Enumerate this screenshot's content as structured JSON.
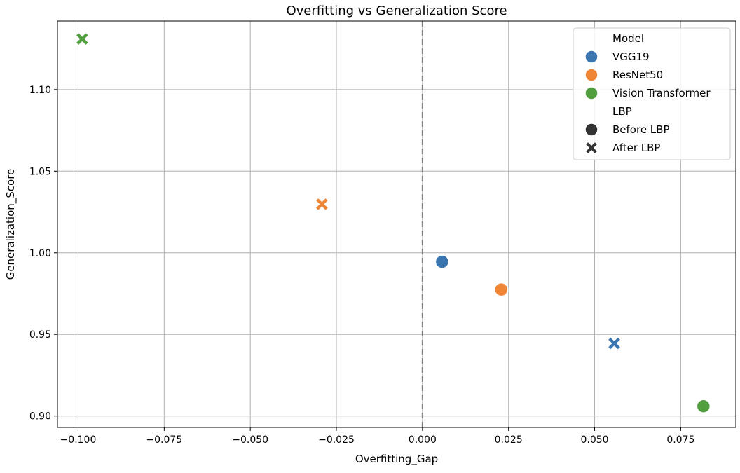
{
  "chart_data": {
    "type": "scatter",
    "title": "Overfitting vs Generalization Score",
    "xlabel": "Overfitting_Gap",
    "ylabel": "Generalization_Score",
    "xlim": [
      -0.106,
      0.091
    ],
    "ylim": [
      0.893,
      1.142
    ],
    "xticks": [
      -0.1,
      -0.075,
      -0.05,
      -0.025,
      0.0,
      0.025,
      0.05,
      0.075
    ],
    "xtick_labels": [
      "−0.100",
      "−0.075",
      "−0.050",
      "−0.025",
      "0.000",
      "0.025",
      "0.050",
      "0.075"
    ],
    "yticks": [
      0.9,
      0.95,
      1.0,
      1.05,
      1.1
    ],
    "ytick_labels": [
      "0.90",
      "0.95",
      "1.00",
      "1.05",
      "1.10"
    ],
    "grid": true,
    "reference_line": {
      "axis": "x",
      "value": 0.0,
      "style": "dashed",
      "color": "#808080"
    },
    "legend_position": "top-right",
    "legend": {
      "hue_title": "Model",
      "style_title": "LBP",
      "models": [
        {
          "name": "VGG19",
          "color": "#3a75b0"
        },
        {
          "name": "ResNet50",
          "color": "#ef8636"
        },
        {
          "name": "Vision Transformer",
          "color": "#519e3e"
        }
      ],
      "markers": [
        {
          "name": "Before LBP",
          "shape": "circle"
        },
        {
          "name": "After LBP",
          "shape": "x"
        }
      ]
    },
    "points": [
      {
        "model": "VGG19",
        "lbp": "Before LBP",
        "x": 0.0057,
        "y": 0.9945
      },
      {
        "model": "VGG19",
        "lbp": "After LBP",
        "x": 0.0557,
        "y": 0.9445
      },
      {
        "model": "ResNet50",
        "lbp": "Before LBP",
        "x": 0.0229,
        "y": 0.9775
      },
      {
        "model": "ResNet50",
        "lbp": "After LBP",
        "x": -0.0292,
        "y": 1.0298
      },
      {
        "model": "Vision Transformer",
        "lbp": "Before LBP",
        "x": 0.0816,
        "y": 0.906
      },
      {
        "model": "Vision Transformer",
        "lbp": "After LBP",
        "x": -0.0988,
        "y": 1.131
      }
    ]
  }
}
